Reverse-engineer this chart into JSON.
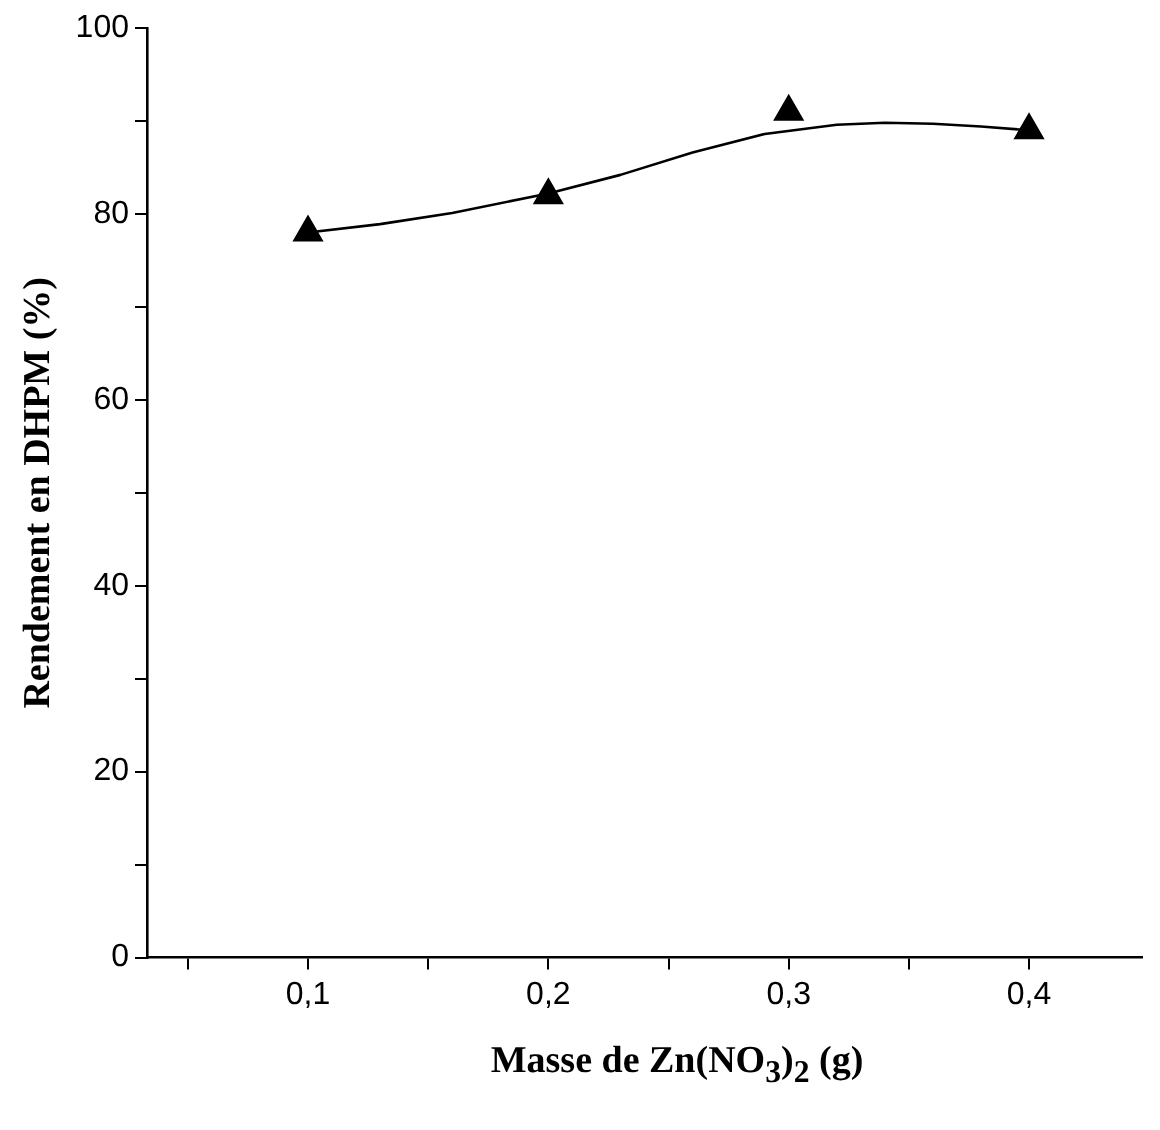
{
  "chart_data": {
    "type": "scatter",
    "xlabel": "Masse de Zn(NO$_{3}$)$_{2}$ (g)",
    "ylabel": "Rendement en DHPM (%)",
    "x": [
      0.1,
      0.2,
      0.3,
      0.4
    ],
    "series": [
      {
        "type": "scatter",
        "color": "#000000",
        "marker": "triangle",
        "values": [
          78,
          82,
          91,
          89
        ]
      },
      {
        "type": "line",
        "color": "#000000",
        "marker": "none",
        "line_style": "solid",
        "x": [
          0.1,
          0.13,
          0.16,
          0.2,
          0.23,
          0.26,
          0.29,
          0.32,
          0.34,
          0.36,
          0.38,
          0.4
        ],
        "values": [
          78,
          78.9,
          80.1,
          82.2,
          84.2,
          86.6,
          88.6,
          89.6,
          89.8,
          89.7,
          89.4,
          89
        ]
      }
    ],
    "xlim": [
      0.033,
      0.447
    ],
    "xticks": [
      {
        "value": 0.05,
        "label": null
      },
      {
        "value": 0.1,
        "label": "0,1"
      },
      {
        "value": 0.15,
        "label": null
      },
      {
        "value": 0.2,
        "label": "0,2"
      },
      {
        "value": 0.25,
        "label": null
      },
      {
        "value": 0.3,
        "label": "0,3"
      },
      {
        "value": 0.35,
        "label": null
      },
      {
        "value": 0.4,
        "label": "0,4"
      }
    ],
    "ylim": [
      0,
      100
    ],
    "yticks": [
      0,
      {
        "value": 10,
        "label": null
      },
      20,
      {
        "value": 30,
        "label": null
      },
      40,
      {
        "value": 50,
        "label": null
      },
      60,
      {
        "value": 70,
        "label": null
      },
      80,
      {
        "value": 90,
        "label": null
      },
      100
    ],
    "grid": false,
    "legend": false
  }
}
